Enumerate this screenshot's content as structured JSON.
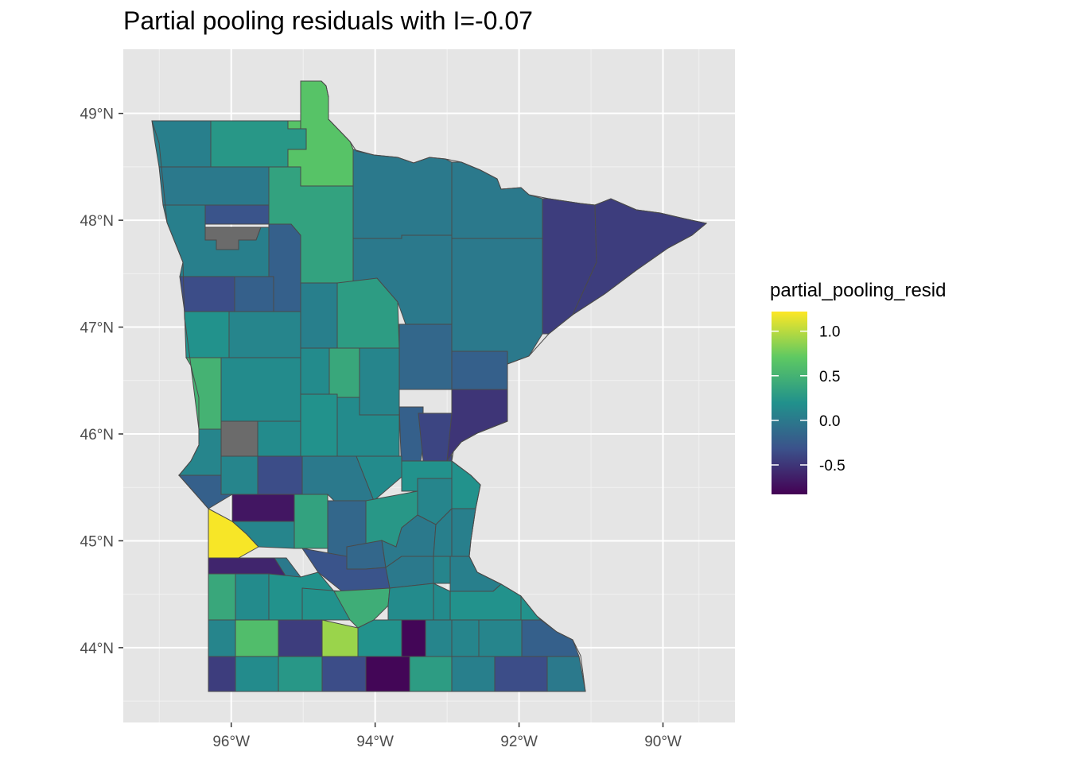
{
  "title": "Partial pooling residuals with I=-0.07",
  "map": {
    "region": "Minnesota",
    "projection": "plain longitude/latitude",
    "x_axis": {
      "ticks": [
        "96°W",
        "94°W",
        "92°W",
        "90°W"
      ],
      "range_lon": [
        -97.5,
        -89.0
      ]
    },
    "y_axis": {
      "ticks": [
        "49°N",
        "48°N",
        "47°N",
        "46°N",
        "45°N",
        "44°N"
      ],
      "range_lat": [
        43.3,
        49.6
      ]
    },
    "panel_background": "#e5e5e5",
    "grid_color": "#ffffff",
    "missing_color": "#6b6b6b",
    "counties": [
      {
        "id": "kittson",
        "v": 0.05
      },
      {
        "id": "roseau",
        "v": 0.25
      },
      {
        "id": "lake_of_woods",
        "v": 0.65
      },
      {
        "id": "koochiching",
        "v": 0.0
      },
      {
        "id": "st_louis_n",
        "v": 0.0
      },
      {
        "id": "marshall",
        "v": 0.0
      },
      {
        "id": "beltrami",
        "v": 0.35
      },
      {
        "id": "red_lake",
        "v": -0.3
      },
      {
        "id": "pennington",
        "v": null
      },
      {
        "id": "polk_n",
        "v": 0.05
      },
      {
        "id": "clearwater",
        "v": -0.2
      },
      {
        "id": "itasca",
        "v": 0.0
      },
      {
        "id": "st_louis",
        "v": 0.0
      },
      {
        "id": "lake",
        "v": -0.45
      },
      {
        "id": "cook",
        "v": -0.45
      },
      {
        "id": "norman",
        "v": -0.35
      },
      {
        "id": "mahnomen",
        "v": -0.2
      },
      {
        "id": "hubbard",
        "v": 0.05
      },
      {
        "id": "cass",
        "v": 0.3
      },
      {
        "id": "clay",
        "v": 0.2
      },
      {
        "id": "becker",
        "v": 0.1
      },
      {
        "id": "wadena",
        "v": 0.15
      },
      {
        "id": "crow_wing",
        "v": 0.4
      },
      {
        "id": "aitkin",
        "v": 0.1
      },
      {
        "id": "carlton",
        "v": -0.15
      },
      {
        "id": "wilkin",
        "v": 0.5
      },
      {
        "id": "otter_tail",
        "v": 0.15
      },
      {
        "id": "todd",
        "v": 0.2
      },
      {
        "id": "morrison",
        "v": 0.15
      },
      {
        "id": "mille_lacs",
        "v": -0.2
      },
      {
        "id": "kanabec",
        "v": -0.4
      },
      {
        "id": "pine",
        "v": -0.5
      },
      {
        "id": "pine_n",
        "v": -0.2
      },
      {
        "id": "traverse",
        "v": 0.1
      },
      {
        "id": "grant",
        "v": null
      },
      {
        "id": "douglas",
        "v": 0.15
      },
      {
        "id": "big_stone",
        "v": -0.2
      },
      {
        "id": "stevens",
        "v": 0.1
      },
      {
        "id": "pope",
        "v": -0.35
      },
      {
        "id": "stearns",
        "v": 0.0
      },
      {
        "id": "benton",
        "v": 0.15
      },
      {
        "id": "isanti",
        "v": 0.2
      },
      {
        "id": "chisago",
        "v": 0.2
      },
      {
        "id": "swift",
        "v": -0.7
      },
      {
        "id": "kandiyohi",
        "v": 0.35
      },
      {
        "id": "meeker",
        "v": -0.15
      },
      {
        "id": "wright",
        "v": 0.25
      },
      {
        "id": "anoka",
        "v": 0.1
      },
      {
        "id": "washington",
        "v": 0.05
      },
      {
        "id": "lac_qui_parle",
        "v": 1.2
      },
      {
        "id": "chippewa",
        "v": 0.1
      },
      {
        "id": "renville",
        "v": 0.0
      },
      {
        "id": "mcleod",
        "v": -0.15
      },
      {
        "id": "hennepin",
        "v": 0.0
      },
      {
        "id": "ramsey",
        "v": 0.05
      },
      {
        "id": "yellow_medicine",
        "v": -0.6
      },
      {
        "id": "sibley",
        "v": -0.3
      },
      {
        "id": "carver",
        "v": 0.0
      },
      {
        "id": "scott",
        "v": 0.1
      },
      {
        "id": "dakota",
        "v": 0.05
      },
      {
        "id": "lincoln",
        "v": 0.4
      },
      {
        "id": "lyon",
        "v": 0.15
      },
      {
        "id": "redwood",
        "v": 0.2
      },
      {
        "id": "brown",
        "v": 0.2
      },
      {
        "id": "nicollet",
        "v": 0.45
      },
      {
        "id": "le_sueur",
        "v": 0.15
      },
      {
        "id": "rice",
        "v": 0.15
      },
      {
        "id": "goodhue",
        "v": 0.2
      },
      {
        "id": "wabasha",
        "v": 0.2
      },
      {
        "id": "pipestone",
        "v": 0.1
      },
      {
        "id": "murray",
        "v": 0.6
      },
      {
        "id": "cottonwood",
        "v": -0.45
      },
      {
        "id": "watonwan",
        "v": 0.9
      },
      {
        "id": "blue_earth",
        "v": 0.2
      },
      {
        "id": "waseca",
        "v": -0.8
      },
      {
        "id": "steele",
        "v": 0.1
      },
      {
        "id": "dodge",
        "v": 0.1
      },
      {
        "id": "olmsted",
        "v": 0.1
      },
      {
        "id": "winona",
        "v": -0.2
      },
      {
        "id": "rock",
        "v": -0.45
      },
      {
        "id": "nobles",
        "v": 0.15
      },
      {
        "id": "jackson",
        "v": 0.25
      },
      {
        "id": "martin",
        "v": -0.35
      },
      {
        "id": "faribault",
        "v": -0.8
      },
      {
        "id": "freeborn",
        "v": 0.3
      },
      {
        "id": "mower",
        "v": 0.05
      },
      {
        "id": "fillmore",
        "v": -0.35
      },
      {
        "id": "houston",
        "v": 0.0
      }
    ]
  },
  "legend": {
    "title": "partial_pooling_resid",
    "labels": [
      "1.0",
      "0.5",
      "0.0",
      "-0.5"
    ],
    "label_values": [
      1.0,
      0.5,
      0.0,
      -0.5
    ],
    "min": -0.83,
    "max": 1.22,
    "palette": [
      "#440154",
      "#3b528b",
      "#21918c",
      "#5ec962",
      "#fde725"
    ]
  }
}
